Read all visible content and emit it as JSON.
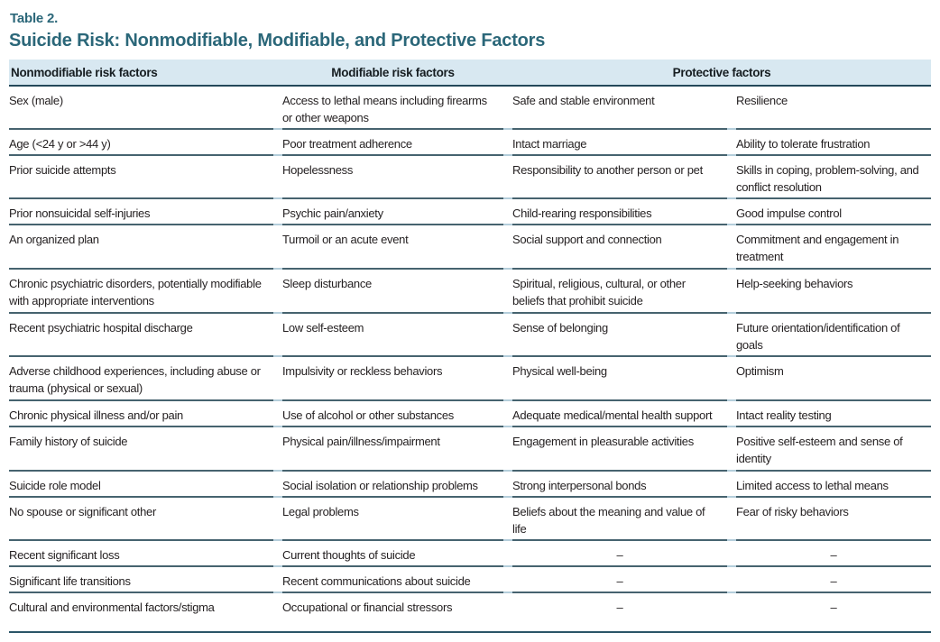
{
  "title": {
    "label": "Table 2.",
    "heading": "Suicide Risk: Nonmodifiable, Modifiable, and Protective Factors"
  },
  "colors": {
    "accent_teal": "#2b6779",
    "header_background": "#d8e8f1",
    "row_rule": "#46636f",
    "gutter_rule": "#b4cedb",
    "heavy_rule": "#24485a"
  },
  "table": {
    "headers": [
      "Nonmodifiable risk factors",
      "Modifiable risk factors",
      "Protective factors"
    ],
    "empty_marker": "–",
    "rows": [
      [
        "Sex (male)",
        "Access to lethal means including firearms or other weapons",
        "Safe and stable environment",
        "Resilience"
      ],
      [
        "Age (<24 y or >44 y)",
        "Poor treatment adherence",
        "Intact marriage",
        "Ability to tolerate frustration"
      ],
      [
        "Prior suicide attempts",
        "Hopelessness",
        "Responsibility to another person or pet",
        "Skills in coping, problem-solving, and conflict resolution"
      ],
      [
        "Prior nonsuicidal self-injuries",
        "Psychic pain/anxiety",
        "Child-rearing responsibilities",
        "Good impulse control"
      ],
      [
        "An organized plan",
        "Turmoil or an acute event",
        "Social support and connection",
        "Commitment and engagement in treatment"
      ],
      [
        "Chronic psychiatric disorders, potentially modifiable with appropriate interventions",
        "Sleep disturbance",
        "Spiritual, religious, cultural, or other beliefs that prohibit suicide",
        "Help-seeking behaviors"
      ],
      [
        "Recent psychiatric hospital discharge",
        "Low self-esteem",
        "Sense of belonging",
        "Future orientation/identification of goals"
      ],
      [
        "Adverse childhood experiences, including abuse or trauma (physical or sexual)",
        "Impulsivity or reckless behaviors",
        "Physical well-being",
        "Optimism"
      ],
      [
        "Chronic physical illness and/or pain",
        "Use of alcohol or other substances",
        "Adequate medical/mental health support",
        "Intact reality testing"
      ],
      [
        "Family history of suicide",
        "Physical pain/illness/impairment",
        "Engagement in pleasurable activities",
        "Positive self-esteem and sense of identity"
      ],
      [
        "Suicide role model",
        "Social isolation or relationship problems",
        "Strong interpersonal bonds",
        "Limited access to lethal means"
      ],
      [
        "No spouse or significant other",
        "Legal problems",
        "Beliefs about the meaning and value of life",
        "Fear of risky behaviors"
      ],
      [
        "Recent significant loss",
        "Current thoughts of suicide",
        "–",
        "–"
      ],
      [
        "Significant life transitions",
        "Recent communications about suicide",
        "–",
        "–"
      ],
      [
        "Cultural and environmental factors/stigma",
        "Occupational or financial stressors",
        "–",
        "–"
      ]
    ]
  }
}
